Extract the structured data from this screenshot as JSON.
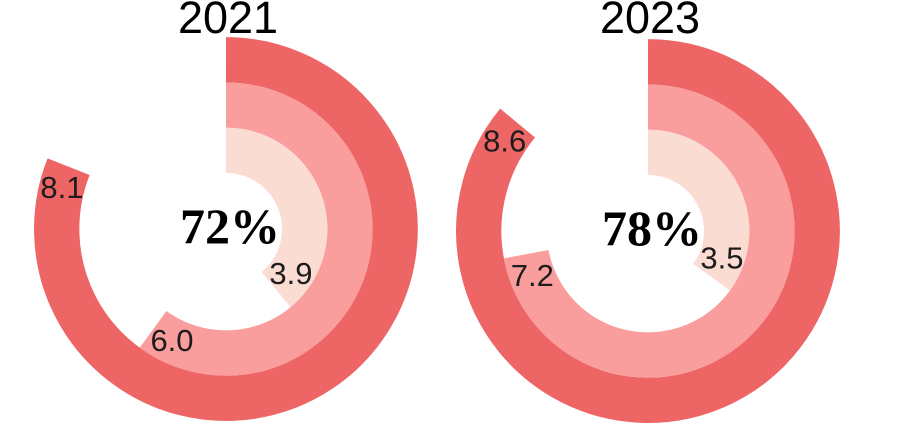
{
  "page": {
    "background": "#ffffff",
    "label_text_color": "#1c1c1c",
    "title_text_color": "#000000"
  },
  "chart_data": [
    {
      "type": "radial-bar",
      "title": "2021",
      "center_label": "72%",
      "scale_max": 10,
      "start_angle_deg": 0,
      "direction": "clockwise",
      "legend": "none",
      "rings": [
        {
          "position": "outer",
          "value": 8.1,
          "label": "8.1",
          "color": "#ee6566"
        },
        {
          "position": "middle",
          "value": 6.0,
          "label": "6.0",
          "color": "#fa9d9d"
        },
        {
          "position": "inner",
          "value": 3.9,
          "label": "3.9",
          "color": "#fbdcd3"
        }
      ]
    },
    {
      "type": "radial-bar",
      "title": "2023",
      "center_label": "78%",
      "scale_max": 10,
      "start_angle_deg": 0,
      "direction": "clockwise",
      "legend": "none",
      "rings": [
        {
          "position": "outer",
          "value": 8.6,
          "label": "8.6",
          "color": "#ee6566"
        },
        {
          "position": "middle",
          "value": 7.2,
          "label": "7.2",
          "color": "#fa9d9d"
        },
        {
          "position": "inner",
          "value": 3.5,
          "label": "3.5",
          "color": "#fbdcd3"
        }
      ]
    }
  ]
}
